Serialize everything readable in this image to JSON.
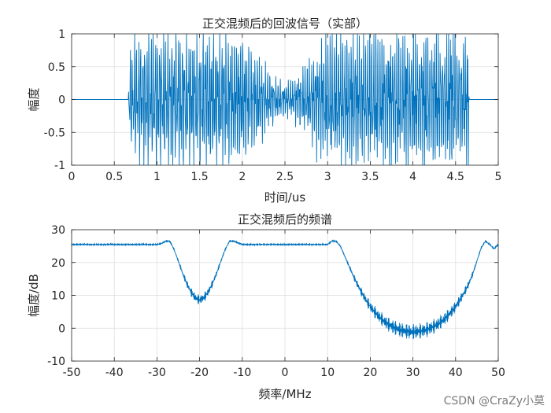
{
  "watermark": "CSDN @CraZy小莫",
  "chart_data": [
    {
      "type": "line",
      "title": "正交混频后的回波信号（实部）",
      "xlabel": "时间/us",
      "ylabel": "幅度",
      "xlim": [
        0,
        5
      ],
      "ylim": [
        -1,
        1
      ],
      "xticks": [
        "0",
        "0.5",
        "1",
        "1.5",
        "2",
        "2.5",
        "3",
        "3.5",
        "4",
        "4.5",
        "5"
      ],
      "yticks": [
        "-1",
        "-0.5",
        "0",
        "0.5",
        "1"
      ],
      "grid": true,
      "legend": "none",
      "series_color": "#0072BD",
      "series": [
        {
          "x": [
            0,
            0.66,
            0.67,
            0.7,
            0.8,
            0.9,
            1.0,
            1.2,
            1.4,
            1.6,
            1.8,
            2.0,
            2.1,
            2.2,
            2.3,
            2.4,
            2.5,
            2.6,
            2.7,
            2.8,
            2.9,
            3.0,
            3.1,
            3.3,
            3.5,
            3.7,
            3.9,
            4.1,
            4.3,
            4.5,
            4.65,
            4.66,
            5
          ],
          "envelope": [
            0,
            0,
            0.35,
            0.8,
            0.95,
            1.0,
            1.0,
            1.0,
            1.0,
            1.0,
            1.0,
            0.95,
            0.8,
            0.6,
            0.45,
            0.3,
            0.25,
            0.3,
            0.45,
            0.6,
            0.8,
            0.95,
            1.0,
            1.0,
            1.0,
            1.0,
            1.0,
            1.0,
            1.0,
            1.0,
            0.85,
            0,
            0
          ]
        }
      ]
    },
    {
      "type": "line",
      "title": "正交混频后的频谱",
      "xlabel": "频率/MHz",
      "ylabel": "幅度/dB",
      "xlim": [
        -50,
        50
      ],
      "ylim": [
        -10,
        30
      ],
      "xticks": [
        "-50",
        "-40",
        "-30",
        "-20",
        "-10",
        "0",
        "10",
        "20",
        "30",
        "40",
        "50"
      ],
      "yticks": [
        "-10",
        "0",
        "10",
        "20",
        "30"
      ],
      "grid": true,
      "legend": "none",
      "series_color": "#0072BD",
      "series": [
        {
          "x": [
            -50,
            -30,
            -29,
            -28,
            -27,
            -26,
            -25,
            -24,
            -23,
            -22,
            -21,
            -20,
            -19,
            -18,
            -17,
            -16,
            -15,
            -14,
            -13,
            -12,
            -10,
            0,
            10,
            11,
            12,
            13,
            14,
            15,
            16,
            17,
            18,
            19,
            20,
            21,
            22,
            23,
            24,
            25,
            26,
            27,
            28,
            29,
            30,
            31,
            32,
            33,
            34,
            35,
            36,
            37,
            38,
            39,
            40,
            41,
            42,
            43,
            44,
            45,
            46,
            47,
            48,
            49,
            50
          ],
          "y": [
            25.5,
            25.5,
            25.8,
            26.5,
            26.5,
            24.0,
            20.5,
            16.8,
            13.6,
            11.0,
            9.3,
            8.6,
            9.3,
            11.0,
            13.6,
            16.8,
            20.5,
            24.0,
            26.5,
            26.5,
            25.5,
            25.5,
            25.5,
            26.5,
            26.5,
            25.0,
            22.0,
            19.0,
            16.0,
            13.3,
            10.8,
            8.6,
            6.6,
            5.0,
            3.6,
            2.4,
            1.4,
            0.6,
            0.0,
            -0.5,
            -0.8,
            -1.0,
            -1.1,
            -1.0,
            -0.8,
            -0.5,
            0.0,
            0.6,
            1.4,
            2.4,
            3.6,
            5.0,
            6.6,
            8.6,
            10.8,
            13.3,
            16.5,
            20.5,
            24.5,
            26.5,
            25.5,
            24.2,
            25.5
          ]
        }
      ]
    }
  ]
}
